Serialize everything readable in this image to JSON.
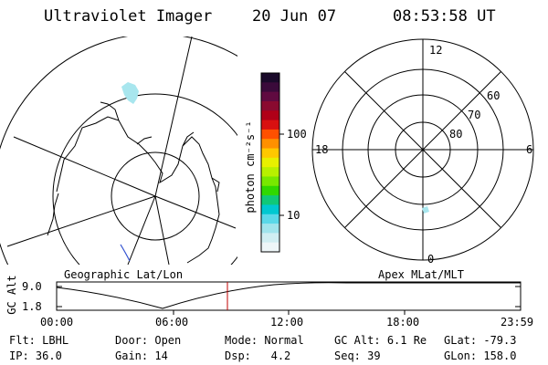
{
  "header": {
    "title": "Ultraviolet Imager",
    "date": "20 Jun 07",
    "time": "08:53:58 UT"
  },
  "colorbar": {
    "unit": "photon cm⁻²s⁻¹",
    "ticks": [
      "100",
      "10"
    ],
    "colors": [
      "#1a0a2a",
      "#3a0a3a",
      "#600a40",
      "#8a0a30",
      "#b00018",
      "#d81010",
      "#ff5000",
      "#ff9000",
      "#ffc800",
      "#e8f000",
      "#b8f000",
      "#78e800",
      "#30d800",
      "#10c878",
      "#00c8d0",
      "#5ad8e8",
      "#a0e4ec",
      "#d0eef2",
      "#eef6f8"
    ]
  },
  "left_map": {
    "label": "Geographic Lat/Lon"
  },
  "right_map": {
    "label": "Apex MLat/MLT",
    "mlt_labels": {
      "top": "12",
      "left": "18",
      "right": "6",
      "bottom": "0"
    },
    "lat_labels": [
      "60",
      "70",
      "80"
    ]
  },
  "altitude_plot": {
    "ylabel": "GC Alt",
    "yticks": [
      "9.0",
      "1.8"
    ],
    "xticks": [
      "00:00",
      "06:00",
      "12:00",
      "18:00",
      "23:59"
    ],
    "marker_color": "#c00000"
  },
  "status": {
    "row1": [
      {
        "label": "Flt:",
        "value": "LBHL"
      },
      {
        "label": "Door:",
        "value": "Open"
      },
      {
        "label": "Mode:",
        "value": "Normal"
      },
      {
        "label": "GC Alt:",
        "value": "6.1 Re"
      },
      {
        "label": "GLat:",
        "value": "-79.3"
      }
    ],
    "row2": [
      {
        "label": "IP:",
        "value": "36.0"
      },
      {
        "label": "Gain:",
        "value": "14"
      },
      {
        "label": "Dsp:",
        "value": "4.2"
      },
      {
        "label": "Seq:",
        "value": "39"
      },
      {
        "label": "GLon:",
        "value": "158.0"
      }
    ]
  }
}
